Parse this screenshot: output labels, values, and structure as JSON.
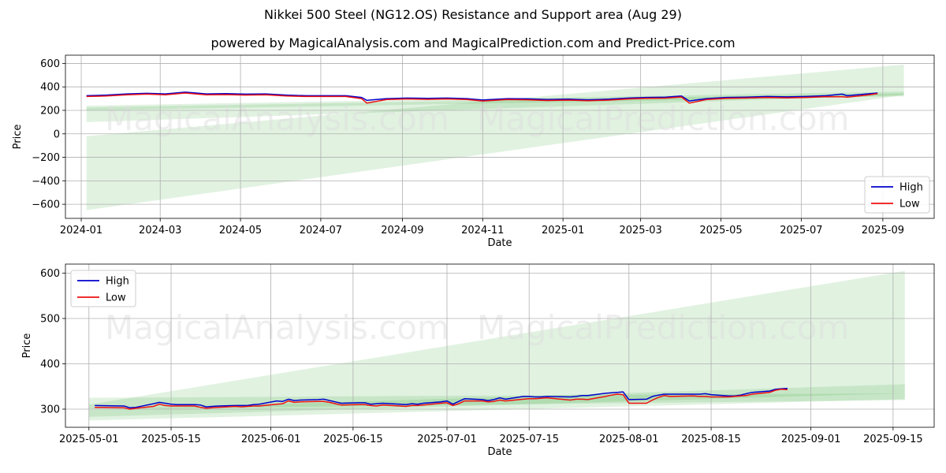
{
  "figure": {
    "title": "Nikkei 500 Steel (NG12.OS) Resistance and Support area (Aug 29)",
    "subtitle": "powered by MagicalAnalysis.com and MagicalPrediction.com and Predict-Price.com",
    "watermarks": [
      "MagicalAnalysis.com",
      "MagicalPrediction.com"
    ]
  },
  "colors": {
    "high": "#0000cc",
    "low": "#ee1111",
    "band": "#2ca02c",
    "grid": "#b0b0b0",
    "watermark": "#dddddd"
  },
  "chart_data": [
    {
      "type": "line",
      "xlabel": "Date",
      "ylabel": "Price",
      "xlim": [
        "2023-12-20",
        "2025-10-10"
      ],
      "ylim": [
        -720,
        670
      ],
      "x_ticks": [
        "2024-01",
        "2024-03",
        "2024-05",
        "2024-07",
        "2024-09",
        "2024-11",
        "2025-01",
        "2025-03",
        "2025-05",
        "2025-07",
        "2025-09"
      ],
      "x_tick_dates": [
        "2024-01-01",
        "2024-03-01",
        "2024-05-01",
        "2024-07-01",
        "2024-09-01",
        "2024-11-01",
        "2025-01-01",
        "2025-03-01",
        "2025-05-01",
        "2025-07-01",
        "2025-09-01"
      ],
      "y_ticks": [
        -600,
        -400,
        -200,
        0,
        200,
        400,
        600
      ],
      "grid": true,
      "legend_position": "lower-right",
      "series": [
        {
          "name": "High",
          "x": [
            "2024-01-05",
            "2024-01-20",
            "2024-02-05",
            "2024-02-20",
            "2024-03-05",
            "2024-03-20",
            "2024-04-05",
            "2024-04-20",
            "2024-05-05",
            "2024-05-20",
            "2024-06-05",
            "2024-06-20",
            "2024-07-05",
            "2024-07-20",
            "2024-08-01",
            "2024-08-05",
            "2024-08-20",
            "2024-09-05",
            "2024-09-20",
            "2024-10-05",
            "2024-10-20",
            "2024-11-01",
            "2024-11-20",
            "2024-12-05",
            "2024-12-20",
            "2025-01-05",
            "2025-01-20",
            "2025-02-05",
            "2025-02-20",
            "2025-03-05",
            "2025-03-20",
            "2025-04-01",
            "2025-04-07",
            "2025-04-20",
            "2025-05-05",
            "2025-05-20",
            "2025-06-05",
            "2025-06-20",
            "2025-07-05",
            "2025-07-20",
            "2025-08-01",
            "2025-08-05",
            "2025-08-20",
            "2025-08-28"
          ],
          "values": [
            325,
            330,
            340,
            345,
            340,
            355,
            340,
            342,
            338,
            340,
            330,
            325,
            325,
            325,
            310,
            285,
            300,
            305,
            302,
            305,
            300,
            288,
            300,
            298,
            292,
            295,
            290,
            295,
            305,
            310,
            312,
            322,
            280,
            300,
            310,
            312,
            318,
            315,
            318,
            325,
            338,
            325,
            340,
            348
          ]
        },
        {
          "name": "Low",
          "x": [
            "2024-01-05",
            "2024-01-20",
            "2024-02-05",
            "2024-02-20",
            "2024-03-05",
            "2024-03-20",
            "2024-04-05",
            "2024-04-20",
            "2024-05-05",
            "2024-05-20",
            "2024-06-05",
            "2024-06-20",
            "2024-07-05",
            "2024-07-20",
            "2024-08-01",
            "2024-08-05",
            "2024-08-20",
            "2024-09-05",
            "2024-09-20",
            "2024-10-05",
            "2024-10-20",
            "2024-11-01",
            "2024-11-20",
            "2024-12-05",
            "2024-12-20",
            "2025-01-05",
            "2025-01-20",
            "2025-02-05",
            "2025-02-20",
            "2025-03-05",
            "2025-03-20",
            "2025-04-01",
            "2025-04-07",
            "2025-04-20",
            "2025-05-05",
            "2025-05-20",
            "2025-06-05",
            "2025-06-20",
            "2025-07-05",
            "2025-07-20",
            "2025-08-01",
            "2025-08-05",
            "2025-08-20",
            "2025-08-28"
          ],
          "values": [
            318,
            322,
            333,
            338,
            332,
            348,
            332,
            334,
            330,
            332,
            322,
            318,
            318,
            318,
            300,
            262,
            292,
            297,
            294,
            297,
            292,
            280,
            292,
            290,
            284,
            287,
            282,
            287,
            297,
            302,
            304,
            314,
            262,
            292,
            303,
            305,
            310,
            307,
            310,
            317,
            316,
            312,
            330,
            343
          ]
        }
      ],
      "bands": [
        {
          "x": [
            "2024-01-05",
            "2025-09-17"
          ],
          "upper": [
            -20,
            590
          ],
          "lower": [
            -650,
            330
          ]
        },
        {
          "x": [
            "2024-01-05",
            "2025-09-17"
          ],
          "upper": [
            240,
            360
          ],
          "lower": [
            100,
            330
          ]
        },
        {
          "x": [
            "2024-01-05",
            "2025-09-17"
          ],
          "upper": [
            225,
            345
          ],
          "lower": [
            200,
            320
          ]
        }
      ]
    },
    {
      "type": "line",
      "xlabel": "Date",
      "ylabel": "Price",
      "xlim": [
        "2025-04-27",
        "2025-09-22"
      ],
      "ylim": [
        260,
        620
      ],
      "x_ticks": [
        "2025-05-01",
        "2025-05-15",
        "2025-06-01",
        "2025-06-15",
        "2025-07-01",
        "2025-07-15",
        "2025-08-01",
        "2025-08-15",
        "2025-09-01",
        "2025-09-15"
      ],
      "y_ticks": [
        300,
        400,
        500,
        600
      ],
      "grid": true,
      "legend_position": "upper-left",
      "series": [
        {
          "name": "High",
          "x": [
            "2025-05-02",
            "2025-05-07",
            "2025-05-08",
            "2025-05-09",
            "2025-05-12",
            "2025-05-13",
            "2025-05-14",
            "2025-05-15",
            "2025-05-16",
            "2025-05-19",
            "2025-05-20",
            "2025-05-21",
            "2025-05-22",
            "2025-05-23",
            "2025-05-26",
            "2025-05-27",
            "2025-05-28",
            "2025-05-29",
            "2025-05-30",
            "2025-06-02",
            "2025-06-03",
            "2025-06-04",
            "2025-06-05",
            "2025-06-06",
            "2025-06-09",
            "2025-06-10",
            "2025-06-11",
            "2025-06-12",
            "2025-06-13",
            "2025-06-16",
            "2025-06-17",
            "2025-06-18",
            "2025-06-19",
            "2025-06-20",
            "2025-06-23",
            "2025-06-24",
            "2025-06-25",
            "2025-06-26",
            "2025-06-27",
            "2025-06-30",
            "2025-07-01",
            "2025-07-02",
            "2025-07-03",
            "2025-07-04",
            "2025-07-07",
            "2025-07-08",
            "2025-07-09",
            "2025-07-10",
            "2025-07-11",
            "2025-07-14",
            "2025-07-15",
            "2025-07-16",
            "2025-07-17",
            "2025-07-18",
            "2025-07-22",
            "2025-07-23",
            "2025-07-24",
            "2025-07-25",
            "2025-07-28",
            "2025-07-29",
            "2025-07-30",
            "2025-07-31",
            "2025-08-01",
            "2025-08-04",
            "2025-08-05",
            "2025-08-06",
            "2025-08-07",
            "2025-08-08",
            "2025-08-12",
            "2025-08-13",
            "2025-08-14",
            "2025-08-15",
            "2025-08-18",
            "2025-08-19",
            "2025-08-20",
            "2025-08-21",
            "2025-08-22",
            "2025-08-25",
            "2025-08-26",
            "2025-08-27",
            "2025-08-28"
          ],
          "values": [
            308,
            307,
            303,
            304,
            312,
            315,
            313,
            311,
            310,
            310,
            309,
            305,
            306,
            307,
            308,
            308,
            308,
            310,
            311,
            318,
            317,
            322,
            319,
            320,
            321,
            322,
            319,
            316,
            313,
            314,
            314,
            311,
            312,
            313,
            311,
            310,
            312,
            311,
            313,
            316,
            318,
            311,
            317,
            323,
            321,
            319,
            321,
            325,
            322,
            328,
            328,
            327,
            327,
            328,
            327,
            328,
            330,
            330,
            335,
            336,
            337,
            338,
            321,
            322,
            328,
            331,
            333,
            333,
            333,
            333,
            334,
            332,
            329,
            329,
            331,
            334,
            337,
            340,
            344,
            345,
            346
          ]
        },
        {
          "name": "Low",
          "x": [
            "2025-05-02",
            "2025-05-07",
            "2025-05-08",
            "2025-05-09",
            "2025-05-12",
            "2025-05-13",
            "2025-05-14",
            "2025-05-15",
            "2025-05-16",
            "2025-05-19",
            "2025-05-20",
            "2025-05-21",
            "2025-05-22",
            "2025-05-23",
            "2025-05-26",
            "2025-05-27",
            "2025-05-28",
            "2025-05-29",
            "2025-05-30",
            "2025-06-02",
            "2025-06-03",
            "2025-06-04",
            "2025-06-05",
            "2025-06-06",
            "2025-06-09",
            "2025-06-10",
            "2025-06-11",
            "2025-06-12",
            "2025-06-13",
            "2025-06-16",
            "2025-06-17",
            "2025-06-18",
            "2025-06-19",
            "2025-06-20",
            "2025-06-23",
            "2025-06-24",
            "2025-06-25",
            "2025-06-26",
            "2025-06-27",
            "2025-06-30",
            "2025-07-01",
            "2025-07-02",
            "2025-07-03",
            "2025-07-04",
            "2025-07-07",
            "2025-07-08",
            "2025-07-09",
            "2025-07-10",
            "2025-07-11",
            "2025-07-14",
            "2025-07-15",
            "2025-07-16",
            "2025-07-17",
            "2025-07-18",
            "2025-07-22",
            "2025-07-23",
            "2025-07-24",
            "2025-07-25",
            "2025-07-28",
            "2025-07-29",
            "2025-07-30",
            "2025-07-31",
            "2025-08-01",
            "2025-08-04",
            "2025-08-05",
            "2025-08-06",
            "2025-08-07",
            "2025-08-08",
            "2025-08-12",
            "2025-08-13",
            "2025-08-14",
            "2025-08-15",
            "2025-08-18",
            "2025-08-19",
            "2025-08-20",
            "2025-08-21",
            "2025-08-22",
            "2025-08-25",
            "2025-08-26",
            "2025-08-27",
            "2025-08-28"
          ],
          "values": [
            304,
            303,
            300,
            302,
            306,
            311,
            308,
            307,
            307,
            307,
            304,
            302,
            303,
            304,
            306,
            305,
            306,
            307,
            307,
            311,
            312,
            318,
            315,
            316,
            317,
            317,
            315,
            312,
            309,
            310,
            310,
            308,
            307,
            309,
            307,
            306,
            308,
            308,
            309,
            313,
            314,
            308,
            312,
            318,
            318,
            316,
            317,
            320,
            318,
            322,
            323,
            323,
            324,
            325,
            320,
            322,
            322,
            321,
            328,
            331,
            333,
            332,
            313,
            313,
            320,
            326,
            330,
            328,
            329,
            328,
            328,
            327,
            327,
            328,
            329,
            330,
            333,
            337,
            342,
            344,
            343
          ]
        }
      ],
      "bands": [
        {
          "x": [
            "2025-05-01",
            "2025-09-17"
          ],
          "upper": [
            310,
            605
          ],
          "lower": [
            300,
            320
          ]
        },
        {
          "x": [
            "2025-05-01",
            "2025-09-17"
          ],
          "upper": [
            298,
            355
          ],
          "lower": [
            283,
            335
          ]
        },
        {
          "x": [
            "2025-05-01",
            "2025-09-17"
          ],
          "upper": [
            325,
            335
          ],
          "lower": [
            275,
            322
          ]
        }
      ]
    }
  ]
}
